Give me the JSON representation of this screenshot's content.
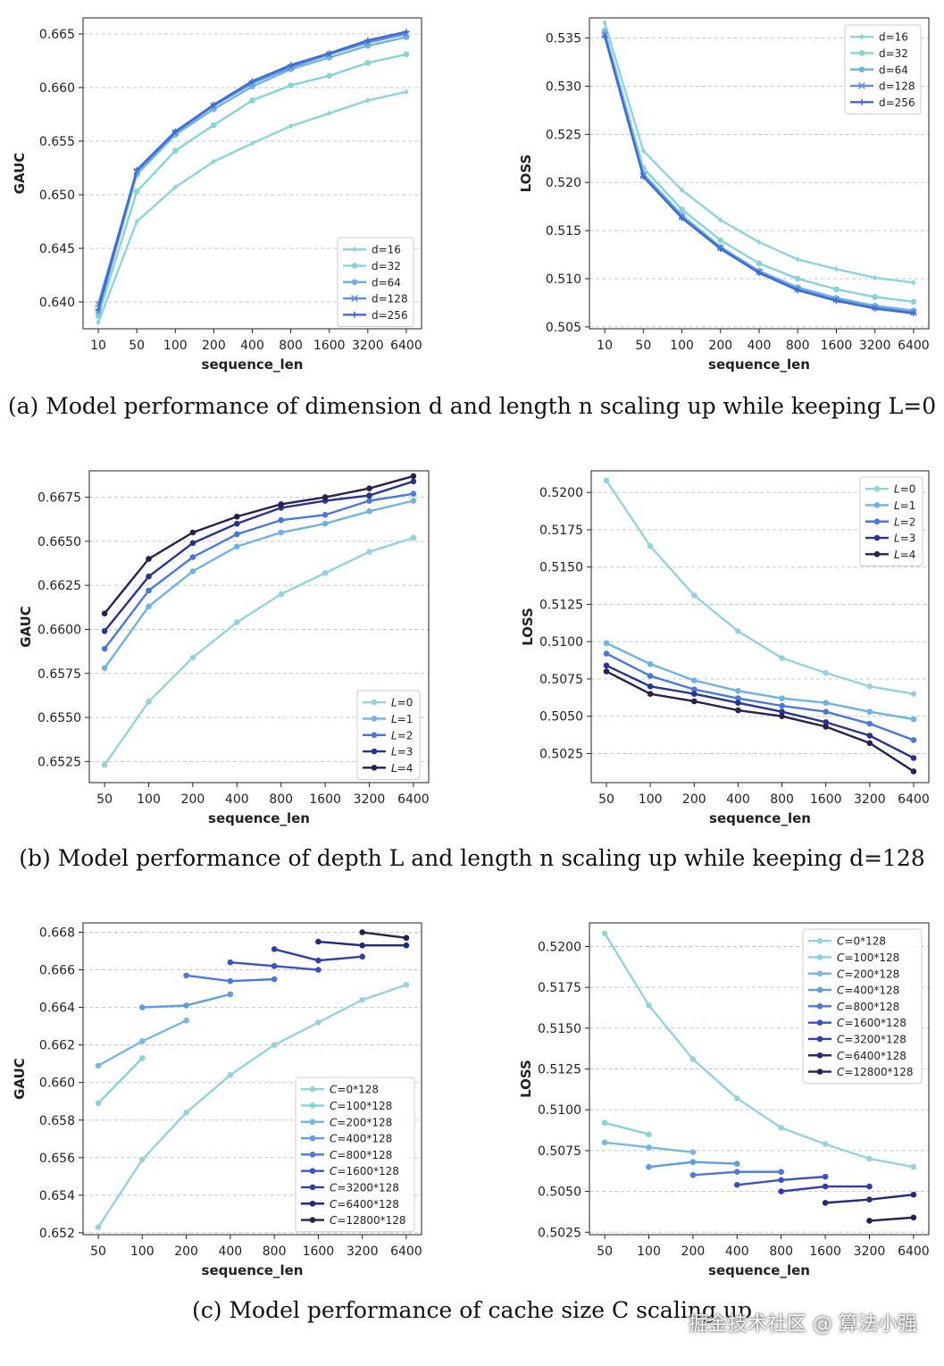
{
  "captions": [
    "(a)  Model performance of dimension d and length n scaling up while keeping L=0",
    "(b)  Model performance of depth L and length n scaling up while keeping d=128",
    "(c)  Model performance of cache size C scaling up"
  ],
  "watermark": "掘金技术社区 @ 算法小强",
  "chart_data": [
    {
      "id": "a-gauc",
      "type": "line",
      "xlabel": "sequence_len",
      "ylabel": "GAUC",
      "categories": [
        "10",
        "50",
        "100",
        "200",
        "400",
        "800",
        "1600",
        "3200",
        "6400"
      ],
      "ylim": [
        0.6375,
        0.6665
      ],
      "yticks": [
        0.64,
        0.645,
        0.65,
        0.655,
        0.66,
        0.665
      ],
      "ydec": 3,
      "grid": "horizontal-dashed",
      "legend": "bottom-right",
      "series": [
        {
          "name": "d=16",
          "color": "#8fd3dc",
          "marker": "diamond",
          "values": [
            0.6381,
            0.6475,
            0.6507,
            0.6531,
            0.6548,
            0.6564,
            0.6576,
            0.6588,
            0.6596
          ]
        },
        {
          "name": "d=32",
          "color": "#86d3d8",
          "marker": "circle",
          "values": [
            0.6387,
            0.6503,
            0.6541,
            0.6565,
            0.6588,
            0.6602,
            0.6611,
            0.6623,
            0.6631
          ]
        },
        {
          "name": "d=64",
          "color": "#6fb3e3",
          "marker": "circle",
          "values": [
            0.6391,
            0.6519,
            0.6556,
            0.658,
            0.6601,
            0.6617,
            0.6628,
            0.6639,
            0.6647
          ]
        },
        {
          "name": "d=128",
          "color": "#5a90de",
          "marker": "x",
          "values": [
            0.6398,
            0.6522,
            0.6558,
            0.6583,
            0.6604,
            0.6619,
            0.6631,
            0.6642,
            0.665
          ]
        },
        {
          "name": "d=256",
          "color": "#3f6ad3",
          "marker": "plus",
          "values": [
            0.6393,
            0.6523,
            0.6559,
            0.6584,
            0.6606,
            0.6621,
            0.6632,
            0.6644,
            0.6652
          ]
        }
      ]
    },
    {
      "id": "a-loss",
      "type": "line",
      "xlabel": "sequence_len",
      "ylabel": "LOSS",
      "categories": [
        "10",
        "50",
        "100",
        "200",
        "400",
        "800",
        "1600",
        "3200",
        "6400"
      ],
      "ylim": [
        0.5048,
        0.5371
      ],
      "yticks": [
        0.505,
        0.51,
        0.515,
        0.52,
        0.525,
        0.53,
        0.535
      ],
      "ydec": 3,
      "grid": "horizontal-dashed",
      "legend": "top-right",
      "series": [
        {
          "name": "d=16",
          "color": "#8fd3dc",
          "marker": "diamond",
          "values": [
            0.5366,
            0.5233,
            0.5192,
            0.5161,
            0.5138,
            0.512,
            0.511,
            0.5101,
            0.5096
          ]
        },
        {
          "name": "d=32",
          "color": "#86d3d8",
          "marker": "circle",
          "values": [
            0.5358,
            0.5215,
            0.5172,
            0.514,
            0.5116,
            0.51,
            0.5089,
            0.5081,
            0.5076
          ]
        },
        {
          "name": "d=64",
          "color": "#6fb3e3",
          "marker": "circle",
          "values": [
            0.5356,
            0.5209,
            0.5166,
            0.5133,
            0.5108,
            0.5091,
            0.508,
            0.5072,
            0.5067
          ]
        },
        {
          "name": "d=128",
          "color": "#5a90de",
          "marker": "x",
          "values": [
            0.5353,
            0.5207,
            0.5164,
            0.5132,
            0.5107,
            0.5089,
            0.5078,
            0.507,
            0.5065
          ]
        },
        {
          "name": "d=256",
          "color": "#3f6ad3",
          "marker": "plus",
          "values": [
            0.5352,
            0.5206,
            0.5163,
            0.5131,
            0.5106,
            0.5088,
            0.5077,
            0.5069,
            0.5064
          ]
        }
      ]
    },
    {
      "id": "b-gauc",
      "type": "line",
      "xlabel": "sequence_len",
      "ylabel": "GAUC",
      "categories": [
        "50",
        "100",
        "200",
        "400",
        "800",
        "1600",
        "3200",
        "6400"
      ],
      "ylim": [
        0.6513,
        0.669
      ],
      "yticks": [
        0.6525,
        0.655,
        0.6575,
        0.66,
        0.6625,
        0.665,
        0.6675
      ],
      "ydec": 4,
      "grid": "horizontal-dashed",
      "legend": "bottom-right",
      "series": [
        {
          "name": "L=0",
          "color": "#96d2de",
          "marker": "circle",
          "values": [
            0.6523,
            0.6559,
            0.6584,
            0.6604,
            0.662,
            0.6632,
            0.6644,
            0.6652
          ]
        },
        {
          "name": "L=1",
          "color": "#6fb3e3",
          "marker": "circle",
          "values": [
            0.6578,
            0.6613,
            0.6633,
            0.6647,
            0.6655,
            0.666,
            0.6667,
            0.6673
          ]
        },
        {
          "name": "L=2",
          "color": "#4a78d8",
          "marker": "circle",
          "values": [
            0.6589,
            0.6622,
            0.6641,
            0.6654,
            0.6662,
            0.6665,
            0.6673,
            0.6677
          ]
        },
        {
          "name": "L=3",
          "color": "#27358e",
          "marker": "circle",
          "values": [
            0.6599,
            0.663,
            0.6649,
            0.666,
            0.6669,
            0.6673,
            0.6676,
            0.6684
          ]
        },
        {
          "name": "L=4",
          "color": "#2b1f4e",
          "marker": "circle",
          "values": [
            0.6609,
            0.664,
            0.6655,
            0.6664,
            0.6671,
            0.6675,
            0.668,
            0.6687
          ]
        }
      ]
    },
    {
      "id": "b-loss",
      "type": "line",
      "xlabel": "sequence_len",
      "ylabel": "LOSS",
      "categories": [
        "50",
        "100",
        "200",
        "400",
        "800",
        "1600",
        "3200",
        "6400"
      ],
      "ylim": [
        0.50055,
        0.52145
      ],
      "yticks": [
        0.5025,
        0.505,
        0.5075,
        0.51,
        0.5125,
        0.515,
        0.5175,
        0.52
      ],
      "ydec": 4,
      "grid": "horizontal-dashed",
      "legend": "top-right",
      "series": [
        {
          "name": "L=0",
          "color": "#96d2de",
          "marker": "circle",
          "values": [
            0.5208,
            0.5164,
            0.5131,
            0.5107,
            0.5089,
            0.5079,
            0.507,
            0.5065
          ]
        },
        {
          "name": "L=1",
          "color": "#6fb3e3",
          "marker": "circle",
          "values": [
            0.5099,
            0.5085,
            0.5074,
            0.5067,
            0.5062,
            0.5059,
            0.5053,
            0.5048
          ]
        },
        {
          "name": "L=2",
          "color": "#4a78d8",
          "marker": "circle",
          "values": [
            0.5092,
            0.5077,
            0.5068,
            0.5062,
            0.5057,
            0.5053,
            0.5045,
            0.5034
          ]
        },
        {
          "name": "L=3",
          "color": "#27358e",
          "marker": "circle",
          "values": [
            0.5084,
            0.507,
            0.5065,
            0.5059,
            0.5053,
            0.5046,
            0.5037,
            0.5022
          ]
        },
        {
          "name": "L=4",
          "color": "#2b1f4e",
          "marker": "circle",
          "values": [
            0.508,
            0.5065,
            0.506,
            0.5054,
            0.505,
            0.5043,
            0.5032,
            0.5013
          ]
        }
      ]
    },
    {
      "id": "c-gauc",
      "type": "line",
      "xlabel": "sequence_len",
      "ylabel": "GAUC",
      "categories": [
        "50",
        "100",
        "200",
        "400",
        "800",
        "1600",
        "3200",
        "6400"
      ],
      "ylim": [
        0.6519,
        0.6685
      ],
      "yticks": [
        0.652,
        0.654,
        0.656,
        0.658,
        0.66,
        0.662,
        0.664,
        0.666,
        0.668
      ],
      "ydec": 3,
      "grid": "horizontal-dashed",
      "legend": "bottom-right",
      "series": [
        {
          "name": "C=0*128",
          "color": "#96d2de",
          "marker": "circle",
          "values": [
            0.6523,
            0.6559,
            0.6584,
            0.6604,
            0.662,
            0.6632,
            0.6644,
            0.6652
          ]
        },
        {
          "name": "C=100*128",
          "color": "#86d3d8",
          "marker": "circle",
          "values": [
            0.6589,
            0.6613,
            null,
            null,
            null,
            null,
            null,
            null
          ]
        },
        {
          "name": "C=200*128",
          "color": "#78b7df",
          "marker": "circle",
          "values": [
            0.6609,
            0.6622,
            0.6633,
            null,
            null,
            null,
            null,
            null
          ]
        },
        {
          "name": "C=400*128",
          "color": "#5f9ce0",
          "marker": "circle",
          "values": [
            null,
            0.664,
            0.6641,
            0.6647,
            null,
            null,
            null,
            null
          ]
        },
        {
          "name": "C=800*128",
          "color": "#4a78d8",
          "marker": "circle",
          "values": [
            null,
            null,
            0.6657,
            0.6654,
            0.6655,
            null,
            null,
            null
          ]
        },
        {
          "name": "C=1600*128",
          "color": "#3a52c4",
          "marker": "circle",
          "values": [
            null,
            null,
            null,
            0.6664,
            0.6662,
            0.666,
            null,
            null
          ]
        },
        {
          "name": "C=3200*128",
          "color": "#2f3fa8",
          "marker": "circle",
          "values": [
            null,
            null,
            null,
            null,
            0.6671,
            0.6665,
            0.6667,
            null
          ]
        },
        {
          "name": "C=6400*128",
          "color": "#232a78",
          "marker": "circle",
          "values": [
            null,
            null,
            null,
            null,
            null,
            0.6675,
            0.6673,
            0.6673
          ]
        },
        {
          "name": "C=12800*128",
          "color": "#2b1f4e",
          "marker": "circle",
          "values": [
            null,
            null,
            null,
            null,
            null,
            null,
            0.668,
            0.6677
          ]
        }
      ]
    },
    {
      "id": "c-loss",
      "type": "line",
      "xlabel": "sequence_len",
      "ylabel": "LOSS",
      "categories": [
        "50",
        "100",
        "200",
        "400",
        "800",
        "1600",
        "3200",
        "6400"
      ],
      "ylim": [
        0.50235,
        0.52145
      ],
      "yticks": [
        0.5025,
        0.505,
        0.5075,
        0.51,
        0.5125,
        0.515,
        0.5175,
        0.52
      ],
      "ydec": 4,
      "grid": "horizontal-dashed",
      "legend": "top-right",
      "series": [
        {
          "name": "C=0*128",
          "color": "#96d2de",
          "marker": "circle",
          "values": [
            0.5208,
            0.5164,
            0.5131,
            0.5107,
            0.5089,
            0.5079,
            0.507,
            0.5065
          ]
        },
        {
          "name": "C=100*128",
          "color": "#86d3d8",
          "marker": "circle",
          "values": [
            0.5092,
            0.5085,
            null,
            null,
            null,
            null,
            null,
            null
          ]
        },
        {
          "name": "C=200*128",
          "color": "#78b7df",
          "marker": "circle",
          "values": [
            0.508,
            0.5077,
            0.5074,
            null,
            null,
            null,
            null,
            null
          ]
        },
        {
          "name": "C=400*128",
          "color": "#5f9ce0",
          "marker": "circle",
          "values": [
            null,
            0.5065,
            0.5068,
            0.5067,
            null,
            null,
            null,
            null
          ]
        },
        {
          "name": "C=800*128",
          "color": "#4a78d8",
          "marker": "circle",
          "values": [
            null,
            null,
            0.506,
            0.5062,
            0.5062,
            null,
            null,
            null
          ]
        },
        {
          "name": "C=1600*128",
          "color": "#3a52c4",
          "marker": "circle",
          "values": [
            null,
            null,
            null,
            0.5054,
            0.5057,
            0.5059,
            null,
            null
          ]
        },
        {
          "name": "C=3200*128",
          "color": "#2f3fa8",
          "marker": "circle",
          "values": [
            null,
            null,
            null,
            null,
            0.505,
            0.5053,
            0.5053,
            null
          ]
        },
        {
          "name": "C=6400*128",
          "color": "#232a78",
          "marker": "circle",
          "values": [
            null,
            null,
            null,
            null,
            null,
            0.5043,
            0.5045,
            0.5048
          ]
        },
        {
          "name": "C=12800*128",
          "color": "#2b1f4e",
          "marker": "circle",
          "values": [
            null,
            null,
            null,
            null,
            null,
            null,
            0.5032,
            0.5034
          ]
        }
      ]
    }
  ]
}
